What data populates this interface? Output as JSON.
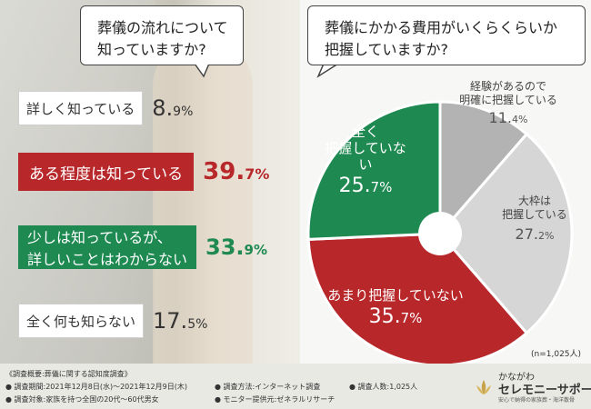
{
  "left_question": {
    "line1": "葬儀の流れについて",
    "line2": "知っていますか?"
  },
  "right_question": {
    "line1": "葬儀にかかる費用がいくらくらいか",
    "line2": "把握していますか?"
  },
  "left_answers": [
    {
      "label": "詳しく知っている",
      "value": "8.",
      "pct": "9%"
    },
    {
      "label": "ある程度は知っている",
      "value": "39.",
      "pct": "7%"
    },
    {
      "label": "少しは知っているが、",
      "label2": "詳しいことはわからない",
      "value": "33.",
      "pct": "9%"
    },
    {
      "label": "全く何も知らない",
      "value": "17.",
      "pct": "5%"
    }
  ],
  "chart_data": {
    "type": "pie",
    "title": "葬儀にかかる費用がいくらくらいか把握していますか?",
    "slices": [
      {
        "label": "経験があるので明確に把握している",
        "value": 11.4,
        "color": "#b3b3b3"
      },
      {
        "label": "大枠は把握している",
        "value": 27.2,
        "color": "#d6d6d6"
      },
      {
        "label": "あまり把握していない",
        "value": 35.7,
        "color": "#b8282b"
      },
      {
        "label": "全く把握していない",
        "value": 25.7,
        "color": "#1e8a52"
      }
    ],
    "labels": {
      "exp1": "経験があるので",
      "exp2": "明確に把握している",
      "exp_val": "11.",
      "exp_pct": "4%",
      "big1": "大枠は",
      "big2": "把握している",
      "big_val": "27.",
      "big_pct": "2%",
      "amari": "あまり把握していない",
      "amari_val": "35.",
      "amari_pct": "7%",
      "zen1": "全く",
      "zen2": "把握していない",
      "zen_val": "25.",
      "zen_pct": "7%"
    },
    "n": "(n=1,025人)"
  },
  "footer": {
    "summary": "《調査概要:葬儀に関する認知度調査》",
    "period": "● 調査期間:2021年12月8日(水)〜2021年12月9日(木)",
    "method": "● 調査方法:インターネット調査",
    "count": "● 調査人数:1,025人",
    "target": "● 調査対象:家族を持つ全国の20代〜60代男女",
    "provider": "● モニター提供元:ゼネラルリサーチ"
  },
  "logo": {
    "line1": "かながわ",
    "line2": "セレモニーサポート",
    "tagline": "安心で納得の家族葬・海洋散骨"
  },
  "colors": {
    "red": "#b8282b",
    "green": "#1e8a52",
    "grey_dark": "#b3b3b3",
    "grey_light": "#d6d6d6"
  }
}
